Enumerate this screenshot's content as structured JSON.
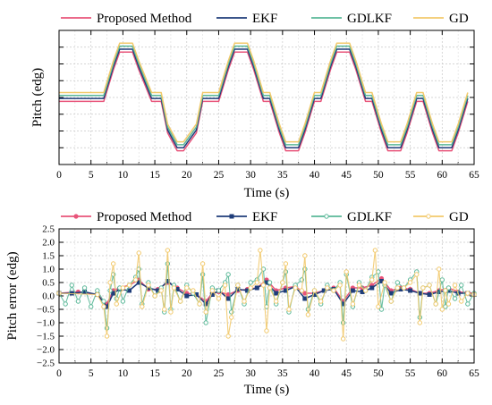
{
  "chart_data": [
    {
      "type": "line",
      "xlabel": "Time (s)",
      "ylabel": "Pitch (edg)",
      "xlim": [
        0,
        65
      ],
      "ylim": [
        -3.2,
        3.6
      ],
      "x_ticks": [
        "0",
        "5",
        "10",
        "15",
        "20",
        "25",
        "30",
        "35",
        "40",
        "45",
        "50",
        "55",
        "60",
        "65"
      ],
      "y_ticks": [],
      "grid": true,
      "legend_position": "top",
      "series": [
        {
          "name": "Proposed Method",
          "color": "#e8547a",
          "x": [
            0,
            7,
            8.5,
            9.5,
            11.5,
            12.5,
            14.5,
            15,
            16,
            17,
            18.5,
            19.5,
            21.5,
            22.5,
            24,
            25,
            26.5,
            27.5,
            29.5,
            30.5,
            32,
            33,
            34.5,
            35.5,
            37.5,
            38.5,
            40,
            41,
            42.5,
            43.5,
            45.5,
            46.5,
            48,
            49,
            50.5,
            51.5,
            53.5,
            54.5,
            56,
            57,
            58.5,
            59.5,
            61.5,
            62.5,
            64
          ],
          "y": [
            0,
            0,
            1.6,
            2.5,
            2.5,
            1.6,
            0,
            0,
            0,
            -1.6,
            -2.5,
            -2.5,
            -1.6,
            0,
            0,
            0,
            1.6,
            2.5,
            2.5,
            1.6,
            0,
            0,
            -1.6,
            -2.5,
            -2.5,
            -1.6,
            0,
            0,
            1.6,
            2.5,
            2.5,
            1.6,
            0,
            0,
            -1.6,
            -2.5,
            -2.5,
            -1.6,
            0,
            0,
            -1.6,
            -2.5,
            -2.5,
            -1.6,
            0
          ]
        },
        {
          "name": "EKF",
          "color": "#1f3d7a",
          "x": [
            0,
            7,
            8.5,
            9.5,
            11.5,
            12.5,
            14.5,
            15,
            16,
            17,
            18.5,
            19.5,
            21.5,
            22.5,
            24,
            25,
            26.5,
            27.5,
            29.5,
            30.5,
            32,
            33,
            34.5,
            35.5,
            37.5,
            38.5,
            40,
            41,
            42.5,
            43.5,
            45.5,
            46.5,
            48,
            49,
            50.5,
            51.5,
            53.5,
            54.5,
            56,
            57,
            58.5,
            59.5,
            61.5,
            62.5,
            64
          ],
          "y": [
            0.15,
            0.15,
            1.75,
            2.65,
            2.65,
            1.75,
            0.15,
            0.15,
            0.15,
            -1.45,
            -2.35,
            -2.35,
            -1.45,
            0.15,
            0.15,
            0.15,
            1.75,
            2.65,
            2.65,
            1.75,
            0.15,
            0.15,
            -1.45,
            -2.35,
            -2.35,
            -1.45,
            0.15,
            0.15,
            1.75,
            2.65,
            2.65,
            1.75,
            0.15,
            0.15,
            -1.45,
            -2.35,
            -2.35,
            -1.45,
            0.15,
            0.15,
            -1.45,
            -2.35,
            -2.35,
            -1.45,
            0.15
          ]
        },
        {
          "name": "GDLKF",
          "color": "#5ab898",
          "x": [
            0,
            7,
            8.5,
            9.5,
            11.5,
            12.5,
            14.5,
            15,
            16,
            17,
            18.5,
            19.5,
            21.5,
            22.5,
            24,
            25,
            26.5,
            27.5,
            29.5,
            30.5,
            32,
            33,
            34.5,
            35.5,
            37.5,
            38.5,
            40,
            41,
            42.5,
            43.5,
            45.5,
            46.5,
            48,
            49,
            50.5,
            51.5,
            53.5,
            54.5,
            56,
            57,
            58.5,
            59.5,
            61.5,
            62.5,
            64
          ],
          "y": [
            0.3,
            0.3,
            1.9,
            2.8,
            2.8,
            1.9,
            0.3,
            0.3,
            0.3,
            -1.3,
            -2.2,
            -2.2,
            -1.3,
            0.3,
            0.3,
            0.3,
            1.9,
            2.8,
            2.8,
            1.9,
            0.3,
            0.3,
            -1.3,
            -2.2,
            -2.2,
            -1.3,
            0.3,
            0.3,
            1.9,
            2.8,
            2.8,
            1.9,
            0.3,
            0.3,
            -1.3,
            -2.2,
            -2.2,
            -1.3,
            0.3,
            0.3,
            -1.3,
            -2.2,
            -2.2,
            -1.3,
            0.3
          ]
        },
        {
          "name": "GD",
          "color": "#f2c96b",
          "x": [
            0,
            7,
            8.5,
            9.5,
            11.5,
            12.5,
            14.5,
            15,
            16,
            17,
            18.5,
            19.5,
            21.5,
            22.5,
            24,
            25,
            26.5,
            27.5,
            29.5,
            30.5,
            32,
            33,
            34.5,
            35.5,
            37.5,
            38.5,
            40,
            41,
            42.5,
            43.5,
            45.5,
            46.5,
            48,
            49,
            50.5,
            51.5,
            53.5,
            54.5,
            56,
            57,
            58.5,
            59.5,
            61.5,
            62.5,
            64
          ],
          "y": [
            0.45,
            0.45,
            2.05,
            2.95,
            2.95,
            2.05,
            0.45,
            0.45,
            0.45,
            -1.15,
            -2.05,
            -2.05,
            -1.15,
            0.45,
            0.45,
            0.45,
            2.05,
            2.95,
            2.95,
            2.05,
            0.45,
            0.45,
            -1.15,
            -2.05,
            -2.05,
            -1.15,
            0.45,
            0.45,
            2.05,
            2.95,
            2.95,
            2.05,
            0.45,
            0.45,
            -1.15,
            -2.05,
            -2.05,
            -1.15,
            0.45,
            0.45,
            -1.15,
            -2.05,
            -2.05,
            -1.15,
            0.45
          ]
        }
      ]
    },
    {
      "type": "line",
      "xlabel": "Time (s)",
      "ylabel": "Pitch error (edg)",
      "xlim": [
        0,
        65
      ],
      "ylim": [
        -2.5,
        2.5
      ],
      "x_ticks": [
        "0",
        "5",
        "10",
        "15",
        "20",
        "25",
        "30",
        "35",
        "40",
        "45",
        "50",
        "55",
        "60",
        "65"
      ],
      "y_ticks": [
        "2.5",
        "2.0",
        "1.5",
        "1.0",
        "0.5",
        "0.0",
        "−0.5",
        "−1.0",
        "−1.5",
        "−2.0",
        "−2.5"
      ],
      "grid": true,
      "legend_position": "top",
      "series": [
        {
          "name": "Proposed Method",
          "color": "#e8547a",
          "marker": "circle-filled",
          "x": [
            0,
            3,
            6,
            7.5,
            8.5,
            9.5,
            11,
            12.5,
            14,
            15.5,
            17,
            18.5,
            20,
            21.5,
            23,
            24,
            25,
            26.5,
            28,
            29.5,
            31,
            32.5,
            34,
            35.5,
            37,
            38.5,
            40,
            41.5,
            43,
            44.5,
            46,
            47.5,
            49,
            50.5,
            52,
            53.5,
            55,
            56.5,
            58,
            59.5,
            61,
            62.5,
            65
          ],
          "y": [
            0.1,
            0.15,
            0.05,
            -0.3,
            0.2,
            0.3,
            0.4,
            0.6,
            0.25,
            0.25,
            0.5,
            0.3,
            0.1,
            0.05,
            -0.2,
            0.1,
            0.15,
            0.05,
            0.2,
            0.25,
            0.3,
            0.6,
            0.2,
            0.3,
            0.35,
            0.1,
            0.1,
            0.2,
            0.3,
            -0.2,
            0.3,
            0.3,
            0.4,
            0.65,
            0.2,
            0.3,
            0.25,
            0.1,
            0.1,
            0.2,
            0.3,
            0.15,
            0.1
          ]
        },
        {
          "name": "EKF",
          "color": "#1f3d7a",
          "marker": "square-filled",
          "x": [
            0,
            2,
            4,
            6,
            7.5,
            8.5,
            9.5,
            11,
            12.5,
            14,
            15.5,
            17,
            18.5,
            20,
            21.5,
            23,
            24,
            25,
            26.5,
            28,
            29.5,
            31,
            32.5,
            34,
            35.5,
            37,
            38.5,
            40,
            41.5,
            43,
            44.5,
            46,
            47.5,
            49,
            50.5,
            52,
            53.5,
            55,
            56.5,
            58,
            59.5,
            61,
            62.5,
            64,
            65
          ],
          "y": [
            0.1,
            0.1,
            0.15,
            0.05,
            -0.4,
            0.1,
            0.25,
            0.2,
            0.5,
            0.3,
            0.2,
            0.55,
            0.25,
            0.0,
            0.05,
            -0.3,
            0.05,
            0.2,
            -0.1,
            0.25,
            0.2,
            0.3,
            0.5,
            0.1,
            0.2,
            0.35,
            -0.1,
            0.05,
            0.2,
            0.25,
            -0.3,
            0.2,
            0.15,
            0.3,
            0.55,
            0.1,
            0.25,
            0.2,
            0.1,
            0.05,
            0.15,
            0.2,
            0.1,
            0.1,
            0.05
          ]
        },
        {
          "name": "GDLKF",
          "color": "#5ab898",
          "marker": "circle-open",
          "x": [
            0,
            1,
            2,
            3,
            4,
            5,
            6,
            7,
            7.5,
            8,
            8.5,
            9,
            9.5,
            10,
            11,
            12,
            12.5,
            13,
            14,
            15,
            16,
            16.5,
            17,
            17.5,
            18,
            19,
            20,
            21,
            22,
            22.5,
            23,
            24,
            25,
            26,
            26.5,
            27,
            28,
            29,
            30,
            31,
            32,
            32.5,
            33,
            34,
            35,
            35.5,
            36,
            37,
            38,
            38.5,
            39,
            40,
            41,
            42,
            43,
            44,
            44.5,
            45,
            46,
            47,
            48,
            49,
            50,
            50.5,
            51,
            52,
            53,
            54,
            55,
            56,
            56.5,
            57,
            58,
            59,
            60,
            60.5,
            61,
            62,
            63,
            64,
            65
          ],
          "y": [
            0.1,
            -0.3,
            0.4,
            -0.2,
            0.3,
            -0.4,
            0.2,
            -0.2,
            -1.2,
            0.2,
            0.8,
            -0.1,
            0.3,
            -0.2,
            0.4,
            0.7,
            1.0,
            -0.3,
            0.5,
            0.0,
            0.3,
            -0.6,
            1.2,
            -0.5,
            0.4,
            -0.2,
            0.4,
            0.1,
            -0.3,
            0.8,
            -1.0,
            0.3,
            0.2,
            0.5,
            0.8,
            -0.6,
            0.4,
            -0.3,
            0.5,
            0.6,
            1.0,
            -0.4,
            0.5,
            -0.3,
            0.5,
            0.9,
            -0.6,
            0.4,
            0.6,
            1.0,
            -0.5,
            0.2,
            -0.3,
            0.4,
            0.2,
            0.5,
            -1.0,
            0.8,
            -0.4,
            0.5,
            0.2,
            0.7,
            0.9,
            -0.5,
            0.4,
            -0.2,
            0.5,
            0.3,
            0.6,
            0.9,
            -0.8,
            0.3,
            0.4,
            -0.3,
            0.6,
            -0.4,
            0.3,
            -0.1,
            0.4,
            -0.3,
            0.1
          ]
        },
        {
          "name": "GD",
          "color": "#f2c96b",
          "marker": "circle-open",
          "x": [
            0,
            6,
            7,
            7.5,
            8,
            8.5,
            9,
            10,
            11,
            12,
            12.5,
            13,
            14,
            15,
            16,
            16.5,
            17,
            17.5,
            18,
            19,
            20,
            21,
            22,
            22.5,
            23,
            24,
            25,
            26,
            26.5,
            27,
            28,
            29,
            30,
            31,
            31.5,
            32,
            32.5,
            33,
            34,
            35,
            35.5,
            36,
            37,
            38,
            38.5,
            39,
            40,
            41,
            42,
            43,
            44,
            44.5,
            45,
            46,
            47,
            48,
            49,
            49.5,
            50,
            51,
            52,
            53,
            54,
            55,
            56,
            56.5,
            57,
            58,
            59,
            59.5,
            60,
            60.5,
            61,
            62,
            63,
            64,
            65
          ],
          "y": [
            0.1,
            0.05,
            -0.4,
            -1.5,
            0.5,
            1.2,
            -0.3,
            0.3,
            0.4,
            0.6,
            1.6,
            -0.4,
            0.4,
            0.0,
            0.2,
            -0.5,
            1.7,
            -0.6,
            0.3,
            -0.2,
            0.3,
            0.2,
            -0.3,
            1.2,
            -0.6,
            0.2,
            -0.1,
            0.4,
            -1.5,
            -0.8,
            0.4,
            -0.2,
            0.3,
            0.5,
            1.7,
            0.4,
            -1.3,
            0.3,
            -0.2,
            0.5,
            1.2,
            -0.5,
            0.3,
            0.2,
            1.5,
            -0.7,
            0.2,
            -0.2,
            0.3,
            0.2,
            0.4,
            -1.6,
            0.9,
            -0.3,
            0.4,
            0.2,
            0.6,
            1.7,
            -0.4,
            0.5,
            -0.2,
            0.3,
            0.3,
            0.5,
            0.8,
            -1.0,
            0.3,
            0.4,
            -0.3,
            1.0,
            -0.5,
            0.2,
            -0.3,
            0.4,
            -0.2,
            0.1,
            0.05
          ]
        }
      ]
    }
  ]
}
